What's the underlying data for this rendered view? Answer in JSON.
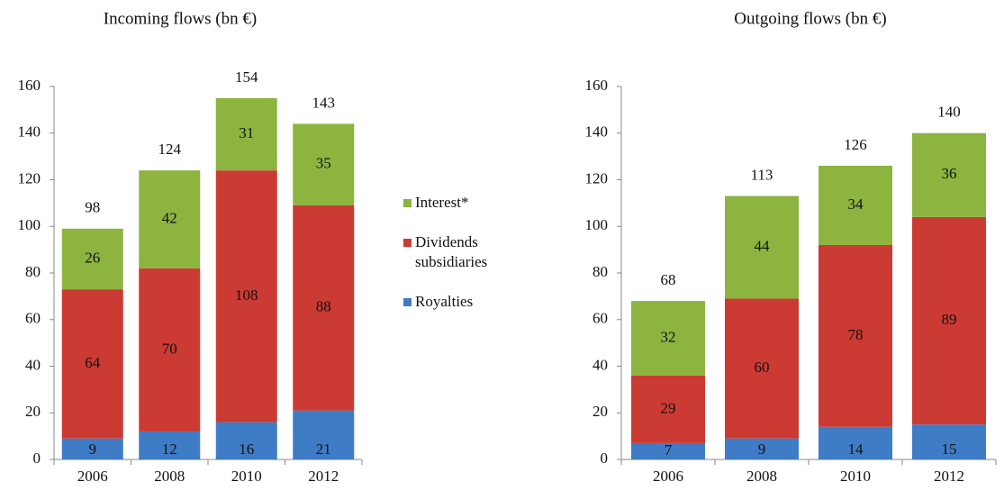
{
  "chart_data": [
    {
      "type": "stacked-bar",
      "title": "Incoming flows (bn €)",
      "categories": [
        "2006",
        "2008",
        "2010",
        "2012"
      ],
      "series": [
        {
          "name": "Royalties",
          "color": "#3f7cc6",
          "values": [
            9,
            12,
            16,
            21
          ]
        },
        {
          "name": "Dividends subsidiaries",
          "color": "#cc3a34",
          "values": [
            64,
            70,
            108,
            88
          ]
        },
        {
          "name": "Interest*",
          "color": "#8cb43f",
          "values": [
            26,
            42,
            31,
            35
          ]
        }
      ],
      "totals": [
        98,
        124,
        154,
        143
      ],
      "ylim": [
        0,
        160
      ],
      "yticks": [
        0,
        20,
        40,
        60,
        80,
        100,
        120,
        140,
        160
      ]
    },
    {
      "type": "stacked-bar",
      "title": "Outgoing flows (bn €)",
      "categories": [
        "2006",
        "2008",
        "2010",
        "2012"
      ],
      "series": [
        {
          "color": "#3f7cc6",
          "values": [
            7,
            9,
            14,
            15
          ]
        },
        {
          "color": "#cc3a34",
          "values": [
            29,
            60,
            78,
            89
          ]
        },
        {
          "color": "#8cb43f",
          "values": [
            32,
            44,
            34,
            36
          ]
        }
      ],
      "totals": [
        68,
        113,
        126,
        140
      ],
      "ylim": [
        0,
        160
      ],
      "yticks": [
        0,
        20,
        40,
        60,
        80,
        100,
        120,
        140,
        160
      ]
    }
  ]
}
